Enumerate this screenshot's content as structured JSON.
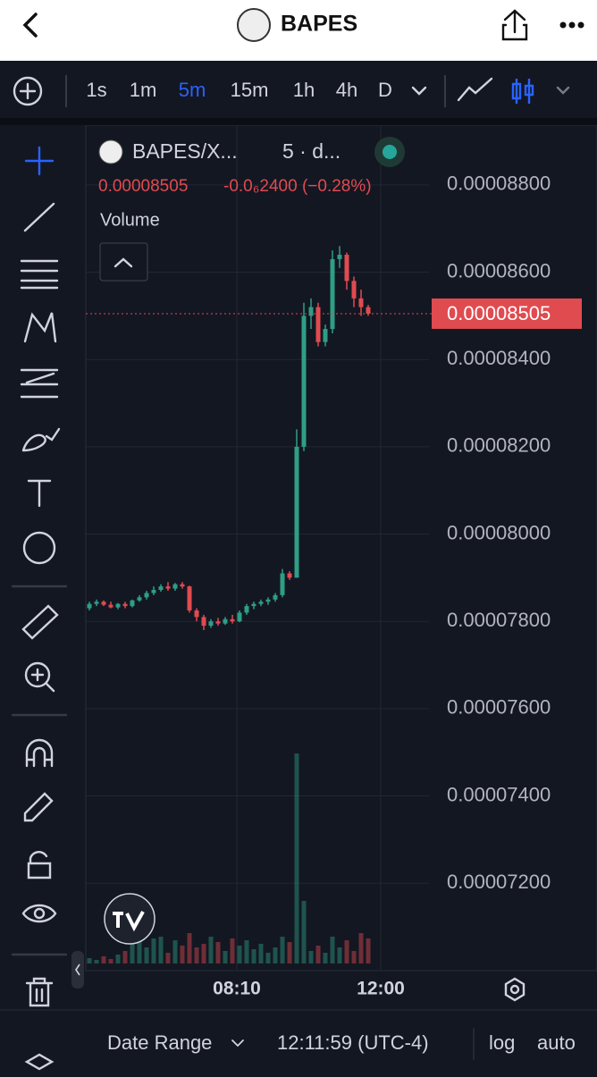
{
  "header": {
    "title": "BAPES"
  },
  "toolbar": {
    "intervals": [
      "1s",
      "1m",
      "5m",
      "15m",
      "1h",
      "4h",
      "D"
    ],
    "active": "5m"
  },
  "legend": {
    "symbol": "BAPES/X...",
    "interval": "5 · d...",
    "change": "-0.0₆2400 (−0.28%)",
    "volume": "Volume"
  },
  "chart_data": {
    "type": "candlestick",
    "last_price": {
      "value": 8.505e-05,
      "label": "0.00008505"
    },
    "ylim": [
      7.012e-05,
      8.937e-05
    ],
    "yticks": [
      {
        "value": 8.8e-05,
        "label": "0.00008800"
      },
      {
        "value": 8.6e-05,
        "label": "0.00008600"
      },
      {
        "value": 8.4e-05,
        "label": "0.00008400"
      },
      {
        "value": 8.2e-05,
        "label": "0.00008200"
      },
      {
        "value": 8e-05,
        "label": "0.00008000"
      },
      {
        "value": 7.8e-05,
        "label": "0.00007800"
      },
      {
        "value": 7.6e-05,
        "label": "0.00007600"
      },
      {
        "value": 7.4e-05,
        "label": "0.00007400"
      },
      {
        "value": 7.2e-05,
        "label": "0.00007200"
      }
    ],
    "xticks": [
      "08:10",
      "12:00"
    ],
    "up_color": "#2f9e86",
    "down_color": "#e04b50",
    "open": [
      7.83e-05,
      7.84e-05,
      7.845e-05,
      7.838e-05,
      7.832e-05,
      7.84e-05,
      7.835e-05,
      7.848e-05,
      7.855e-05,
      7.865e-05,
      7.872e-05,
      7.88e-05,
      7.875e-05,
      7.885e-05,
      7.88e-05,
      7.825e-05,
      7.81e-05,
      7.79e-05,
      7.8e-05,
      7.795e-05,
      7.805e-05,
      7.8e-05,
      7.82e-05,
      7.835e-05,
      7.84e-05,
      7.845e-05,
      7.85e-05,
      7.86e-05,
      7.91e-05,
      7.9e-05,
      8.2e-05,
      8.5e-05,
      8.52e-05,
      8.44e-05,
      8.47e-05,
      8.63e-05,
      8.64e-05,
      8.58e-05,
      8.54e-05,
      8.52e-05
    ],
    "high": [
      7.845e-05,
      7.85e-05,
      7.848e-05,
      7.845e-05,
      7.842e-05,
      7.845e-05,
      7.85e-05,
      7.86e-05,
      7.87e-05,
      7.88e-05,
      7.885e-05,
      7.89e-05,
      7.888e-05,
      7.89e-05,
      7.882e-05,
      7.83e-05,
      7.815e-05,
      7.805e-05,
      7.808e-05,
      7.81e-05,
      7.815e-05,
      7.825e-05,
      7.84e-05,
      7.845e-05,
      7.85e-05,
      7.855e-05,
      7.865e-05,
      7.92e-05,
      7.915e-05,
      8.24e-05,
      8.53e-05,
      8.54e-05,
      8.53e-05,
      8.48e-05,
      8.65e-05,
      8.66e-05,
      8.645e-05,
      8.59e-05,
      8.56e-05,
      8.525e-05
    ],
    "low": [
      7.825e-05,
      7.835e-05,
      7.835e-05,
      7.83e-05,
      7.828e-05,
      7.83e-05,
      7.832e-05,
      7.845e-05,
      7.85e-05,
      7.86e-05,
      7.868e-05,
      7.87e-05,
      7.87e-05,
      7.875e-05,
      7.82e-05,
      7.8e-05,
      7.78e-05,
      7.785e-05,
      7.79e-05,
      7.792e-05,
      7.795e-05,
      7.798e-05,
      7.815e-05,
      7.828e-05,
      7.835e-05,
      7.838e-05,
      7.845e-05,
      7.855e-05,
      7.895e-05,
      7.9e-05,
      8.19e-05,
      8.47e-05,
      8.43e-05,
      8.43e-05,
      8.46e-05,
      8.61e-05,
      8.56e-05,
      8.52e-05,
      8.5e-05,
      8.5e-05
    ],
    "close": [
      7.84e-05,
      7.845e-05,
      7.838e-05,
      7.832e-05,
      7.84e-05,
      7.835e-05,
      7.848e-05,
      7.855e-05,
      7.865e-05,
      7.872e-05,
      7.88e-05,
      7.875e-05,
      7.885e-05,
      7.88e-05,
      7.825e-05,
      7.81e-05,
      7.79e-05,
      7.8e-05,
      7.795e-05,
      7.805e-05,
      7.8e-05,
      7.82e-05,
      7.835e-05,
      7.84e-05,
      7.845e-05,
      7.85e-05,
      7.86e-05,
      7.91e-05,
      7.9e-05,
      8.2e-05,
      8.5e-05,
      8.52e-05,
      8.44e-05,
      8.47e-05,
      8.63e-05,
      8.64e-05,
      8.58e-05,
      8.54e-05,
      8.52e-05,
      8.505e-05
    ],
    "volume": [
      6,
      4,
      8,
      5,
      10,
      14,
      22,
      25,
      18,
      28,
      30,
      12,
      26,
      20,
      34,
      18,
      22,
      30,
      24,
      14,
      28,
      20,
      26,
      16,
      22,
      12,
      18,
      30,
      24,
      235,
      70,
      14,
      20,
      12,
      30,
      18,
      26,
      14,
      34,
      28
    ]
  },
  "footer": {
    "date_range": "Date Range",
    "time": "12:11:59 (UTC-4)",
    "log": "log",
    "auto": "auto"
  }
}
